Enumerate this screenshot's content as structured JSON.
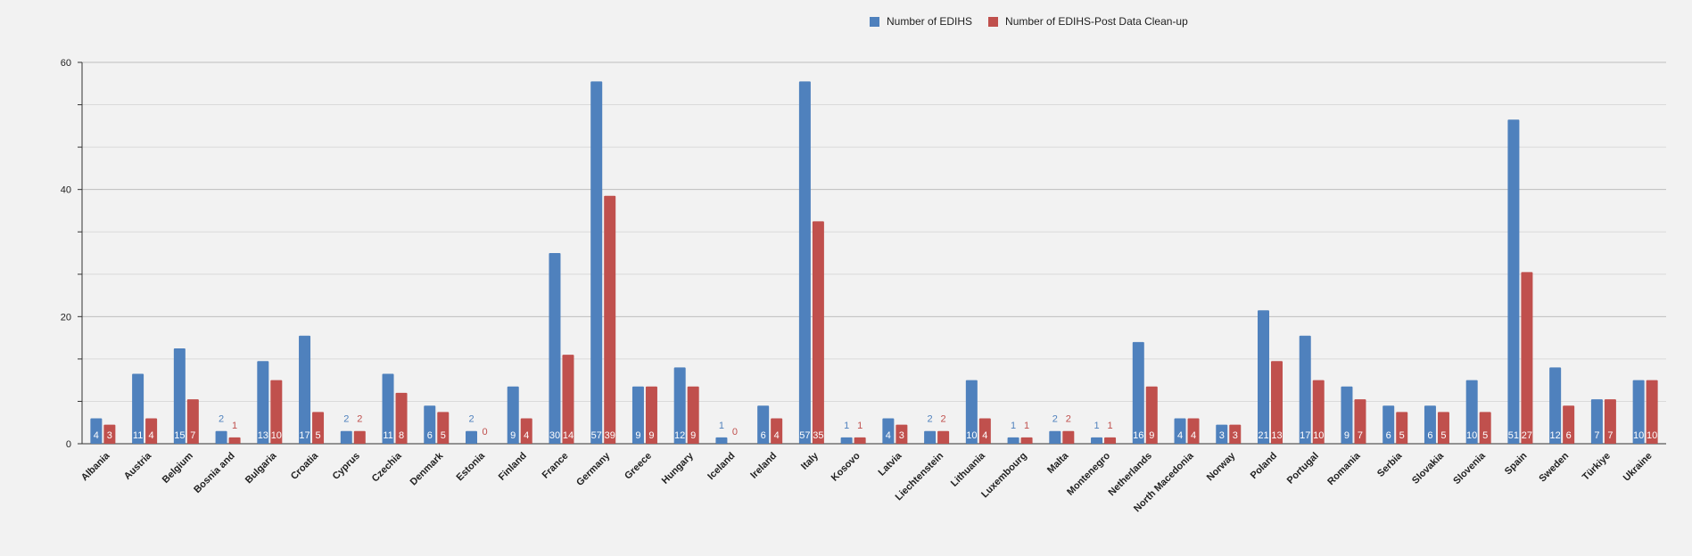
{
  "chart_data": {
    "type": "bar",
    "title": "",
    "xlabel": "",
    "ylabel": "",
    "ylim": [
      0,
      60
    ],
    "yticks": [
      0,
      20,
      40,
      60
    ],
    "grid": true,
    "legend_position": "top",
    "categories": [
      "Albania",
      "Austria",
      "Belgium",
      "Bosnia and",
      "Bulgaria",
      "Croatia",
      "Cyprus",
      "Czechia",
      "Denmark",
      "Estonia",
      "Finland",
      "France",
      "Germany",
      "Greece",
      "Hungary",
      "Iceland",
      "Ireland",
      "Italy",
      "Kosovo",
      "Latvia",
      "Liechtenstein",
      "Lithuania",
      "Luxembourg",
      "Malta",
      "Montenegro",
      "Netherlands",
      "North Macedonia",
      "Norway",
      "Poland",
      "Portugal",
      "Romania",
      "Serbia",
      "Slovakia",
      "Slovenia",
      "Spain",
      "Sweden",
      "Türkiye",
      "Ukraine"
    ],
    "series": [
      {
        "name": "Number of EDIHS",
        "color": "#4f81bd",
        "values": [
          4,
          11,
          15,
          2,
          13,
          17,
          2,
          11,
          6,
          2,
          9,
          30,
          57,
          9,
          12,
          1,
          6,
          57,
          1,
          4,
          2,
          10,
          1,
          2,
          1,
          16,
          4,
          3,
          21,
          17,
          9,
          6,
          6,
          10,
          51,
          12,
          7,
          10
        ]
      },
      {
        "name": "Number of EDIHS-Post Data Clean-up",
        "color": "#c0504d",
        "values": [
          3,
          4,
          7,
          1,
          10,
          5,
          2,
          8,
          5,
          0,
          4,
          14,
          39,
          9,
          9,
          0,
          4,
          35,
          1,
          3,
          2,
          4,
          1,
          2,
          1,
          9,
          4,
          3,
          13,
          10,
          7,
          5,
          5,
          5,
          27,
          6,
          7,
          10
        ]
      }
    ]
  }
}
